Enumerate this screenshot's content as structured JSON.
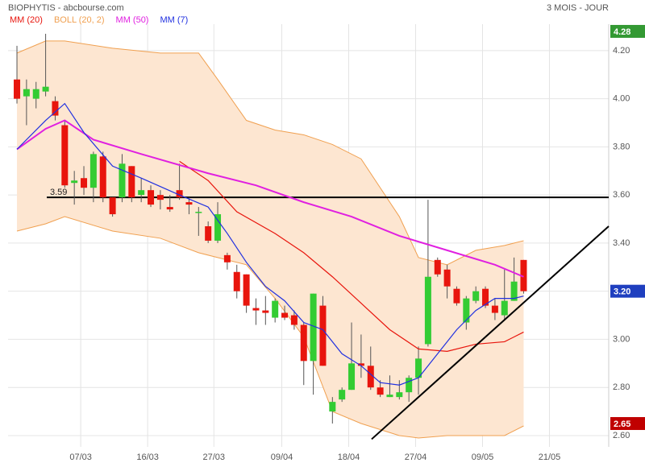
{
  "header": {
    "title": "BIOPHYTIS - abcbourse.com",
    "period": "3 MOIS - JOUR"
  },
  "chart_data": {
    "type": "candlestick",
    "xlim": [
      -0.93,
      61.9
    ],
    "xticks": [
      {
        "value": 6.67,
        "label": "07/03"
      },
      {
        "value": 13.67,
        "label": "16/03"
      },
      {
        "value": 20.6,
        "label": "27/03"
      },
      {
        "value": 27.7,
        "label": "09/04"
      },
      {
        "value": 34.7,
        "label": "18/04"
      },
      {
        "value": 41.7,
        "label": "27/04"
      },
      {
        "value": 48.7,
        "label": "09/05"
      },
      {
        "value": 55.7,
        "label": "21/05"
      }
    ],
    "ylim": [
      2.553,
      4.31
    ],
    "yticks": [
      {
        "value": 2.6,
        "label": "2.60"
      },
      {
        "value": 2.8,
        "label": "2.80"
      },
      {
        "value": 3.0,
        "label": "3.00"
      },
      {
        "value": 3.2,
        "label": "3.20"
      },
      {
        "value": 3.4,
        "label": "3.40"
      },
      {
        "value": 3.6,
        "label": "3.60"
      },
      {
        "value": 3.8,
        "label": "3.80"
      },
      {
        "value": 4.0,
        "label": "4.00"
      },
      {
        "value": 4.2,
        "label": "4.20"
      }
    ],
    "grid": true,
    "candles": {
      "up_color": "#33cc33",
      "down_color": "#e8150d",
      "open": [
        4.08,
        4.01,
        4.0,
        4.03,
        3.99,
        3.89,
        3.65,
        3.67,
        3.63,
        3.76,
        3.59,
        3.59,
        3.72,
        3.6,
        3.62,
        3.6,
        3.55,
        3.62,
        3.57,
        3.53,
        3.47,
        3.41,
        3.35,
        3.28,
        3.27,
        3.13,
        3.12,
        3.09,
        3.11,
        3.1,
        3.06,
        2.91,
        3.14,
        2.7,
        2.75,
        2.79,
        2.9,
        2.89,
        2.8,
        2.76,
        2.76,
        2.78,
        2.84,
        2.98,
        3.33,
        3.29,
        3.21,
        3.07,
        3.16,
        3.21,
        3.14,
        3.1,
        3.16,
        3.33
      ],
      "high": [
        4.22,
        4.08,
        4.07,
        4.27,
        4.01,
        3.91,
        3.7,
        3.72,
        3.78,
        3.78,
        3.59,
        3.77,
        3.72,
        3.67,
        3.64,
        3.62,
        3.6,
        3.73,
        3.59,
        3.55,
        3.49,
        3.57,
        3.36,
        3.31,
        3.27,
        3.17,
        3.18,
        3.17,
        3.14,
        3.12,
        3.07,
        3.19,
        3.18,
        2.76,
        2.8,
        3.07,
        3.02,
        2.97,
        2.83,
        2.85,
        2.83,
        2.85,
        2.97,
        3.58,
        3.34,
        3.31,
        3.22,
        3.18,
        3.22,
        3.22,
        3.17,
        3.29,
        3.34,
        3.33
      ],
      "low": [
        3.98,
        3.89,
        3.96,
        4.01,
        3.91,
        3.63,
        3.56,
        3.6,
        3.57,
        3.57,
        3.51,
        3.57,
        3.57,
        3.57,
        3.55,
        3.54,
        3.53,
        3.58,
        3.52,
        3.43,
        3.4,
        3.4,
        3.29,
        3.17,
        3.11,
        3.06,
        3.06,
        3.07,
        3.08,
        3.04,
        2.81,
        2.77,
        2.89,
        2.65,
        2.74,
        2.79,
        2.84,
        2.79,
        2.76,
        2.76,
        2.75,
        2.74,
        2.77,
        2.97,
        3.26,
        3.17,
        3.14,
        3.04,
        3.15,
        3.13,
        3.08,
        3.08,
        3.16,
        3.19
      ],
      "close": [
        4.0,
        4.04,
        4.04,
        4.05,
        3.93,
        3.64,
        3.66,
        3.63,
        3.77,
        3.59,
        3.52,
        3.73,
        3.59,
        3.62,
        3.56,
        3.58,
        3.54,
        3.59,
        3.56,
        3.53,
        3.41,
        3.52,
        3.32,
        3.2,
        3.14,
        3.12,
        3.11,
        3.16,
        3.09,
        3.06,
        2.91,
        3.19,
        2.89,
        2.74,
        2.79,
        2.9,
        2.89,
        2.8,
        2.77,
        2.77,
        2.78,
        2.84,
        2.92,
        3.26,
        3.27,
        3.22,
        3.15,
        3.17,
        3.2,
        3.14,
        3.11,
        3.16,
        3.24,
        3.2
      ]
    },
    "bollinger": {
      "name": "BOLL (20, 2)",
      "color": "#f0a050",
      "fill": "#fde6d1",
      "x": [
        0,
        3,
        5,
        10,
        15,
        19,
        21,
        24,
        27,
        30,
        33,
        36,
        40,
        42,
        45,
        48,
        51,
        53
      ],
      "upper": [
        4.19,
        4.24,
        4.24,
        4.21,
        4.19,
        4.19,
        4.08,
        3.91,
        3.87,
        3.85,
        3.81,
        3.75,
        3.51,
        3.34,
        3.31,
        3.37,
        3.39,
        3.41
      ],
      "lower": [
        3.45,
        3.48,
        3.51,
        3.45,
        3.42,
        3.36,
        3.34,
        3.31,
        3.17,
        3.01,
        2.7,
        2.65,
        2.6,
        2.59,
        2.6,
        2.6,
        2.6,
        2.64
      ]
    },
    "series": [
      {
        "name": "MM (20)",
        "color": "#e8150d",
        "x": [
          17,
          20,
          23,
          27,
          30,
          33,
          36,
          39,
          42,
          45,
          48,
          51,
          53
        ],
        "values": [
          3.74,
          3.66,
          3.53,
          3.44,
          3.36,
          3.26,
          3.15,
          3.04,
          2.96,
          2.95,
          2.98,
          2.99,
          3.03
        ]
      },
      {
        "name": "MM (50)",
        "color": "#e020e0",
        "x": [
          0,
          3,
          5,
          8,
          13,
          20,
          25,
          30,
          35,
          40,
          45,
          50,
          53
        ],
        "values": [
          3.79,
          3.875,
          3.91,
          3.83,
          3.77,
          3.69,
          3.64,
          3.57,
          3.51,
          3.43,
          3.37,
          3.31,
          3.26
        ]
      },
      {
        "name": "MM (7)",
        "color": "#2030e0",
        "x": [
          0,
          3,
          5,
          7,
          10,
          13,
          17,
          20,
          22,
          24,
          26,
          28,
          30,
          32,
          34,
          36,
          38,
          40,
          42,
          44,
          46,
          48,
          50,
          52,
          53
        ],
        "values": [
          3.79,
          3.91,
          3.98,
          3.86,
          3.72,
          3.67,
          3.6,
          3.55,
          3.44,
          3.32,
          3.22,
          3.16,
          3.07,
          3.04,
          2.94,
          2.89,
          2.82,
          2.81,
          2.84,
          2.94,
          3.04,
          3.12,
          3.17,
          3.17,
          3.18
        ]
      }
    ],
    "level": {
      "value": 3.59,
      "label": "3.59"
    },
    "trendline": {
      "x": [
        37.1,
        61.9
      ],
      "values": [
        2.585,
        3.47
      ]
    },
    "price_tags": [
      {
        "value": 4.28,
        "color": "#339933"
      },
      {
        "value": 3.2,
        "label": "3.20",
        "color": "#1f3fbf"
      },
      {
        "value": 2.65,
        "color": "#c00000"
      }
    ]
  }
}
